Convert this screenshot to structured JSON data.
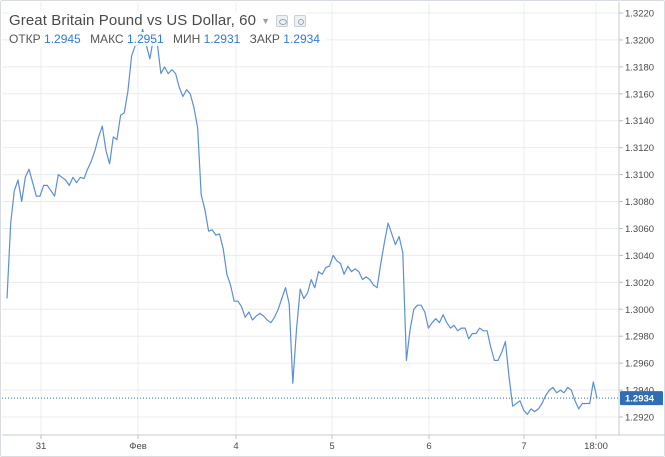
{
  "header": {
    "title": "Great Britain Pound vs US Dollar, 60"
  },
  "ohlc": {
    "open_label": "ОТКР",
    "open_value": "1.2945",
    "high_label": "МАКС",
    "high_value": "1.2951",
    "low_label": "МИН",
    "low_value": "1.2931",
    "close_label": "ЗАКР",
    "close_value": "1.2934"
  },
  "colors": {
    "line": "#5b8fd6",
    "price_tag_bg": "#2f6db5",
    "grid": "#e9ecef"
  },
  "chart_data": {
    "type": "line",
    "ylim": [
      1.291,
      1.3225
    ],
    "y_ticks": [
      "1.3220",
      "1.3200",
      "1.3180",
      "1.3160",
      "1.3140",
      "1.3120",
      "1.3100",
      "1.3080",
      "1.3060",
      "1.3040",
      "1.3020",
      "1.3000",
      "1.2980",
      "1.2960",
      "1.2940",
      "1.2920"
    ],
    "x_ticks": [
      "31",
      "Фев",
      "4",
      "5",
      "6",
      "7",
      "18:00"
    ],
    "last_price": "1.2934",
    "grid": true,
    "series": [
      {
        "values": [
          1.3008,
          1.3064,
          1.3088,
          1.3096,
          1.308,
          1.3098,
          1.3104,
          1.3094,
          1.3084,
          1.3084,
          1.3092,
          1.3092,
          1.3088,
          1.3084,
          1.31,
          1.3098,
          1.3096,
          1.3092,
          1.3098,
          1.3094,
          1.3098,
          1.3097,
          1.3104,
          1.311,
          1.3118,
          1.3128,
          1.3136,
          1.3118,
          1.3108,
          1.3128,
          1.3126,
          1.3144,
          1.3146,
          1.3162,
          1.3188,
          1.3196,
          1.3196,
          1.3208,
          1.3196,
          1.3186,
          1.3202,
          1.3198,
          1.3175,
          1.318,
          1.3175,
          1.3178,
          1.3175,
          1.3165,
          1.3158,
          1.3163,
          1.316,
          1.315,
          1.3135,
          1.3085,
          1.3074,
          1.3058,
          1.3059,
          1.3055,
          1.3056,
          1.3045,
          1.3026,
          1.3018,
          1.3006,
          1.3006,
          1.3002,
          1.2994,
          1.2998,
          1.2992,
          1.2995,
          1.2997,
          1.2995,
          1.2992,
          1.299,
          1.2994,
          1.3,
          1.3008,
          1.3016,
          1.3004,
          1.2945,
          1.2985,
          1.3015,
          1.3008,
          1.3012,
          1.3022,
          1.3016,
          1.3028,
          1.3026,
          1.3031,
          1.3032,
          1.304,
          1.3036,
          1.3034,
          1.3026,
          1.3032,
          1.3028,
          1.303,
          1.3028,
          1.3022,
          1.3024,
          1.3022,
          1.3018,
          1.3016,
          1.3034,
          1.305,
          1.3064,
          1.3056,
          1.3048,
          1.3054,
          1.3042,
          1.2962,
          1.2985,
          1.3,
          1.3003,
          1.3003,
          1.2998,
          1.2986,
          1.299,
          1.2993,
          1.299,
          1.2996,
          1.299,
          1.2986,
          1.2988,
          1.2984,
          1.2986,
          1.2986,
          1.2978,
          1.2982,
          1.2982,
          1.2986,
          1.2984,
          1.2984,
          1.2972,
          1.2962,
          1.2962,
          1.2968,
          1.2976,
          1.295,
          1.2928,
          1.293,
          1.2932,
          1.2925,
          1.2922,
          1.2926,
          1.2924,
          1.2926,
          1.293,
          1.2936,
          1.294,
          1.2942,
          1.2938,
          1.294,
          1.2938,
          1.2942,
          1.294,
          1.2932,
          1.2926,
          1.293,
          1.293,
          1.293,
          1.2946,
          1.2934
        ]
      }
    ]
  }
}
